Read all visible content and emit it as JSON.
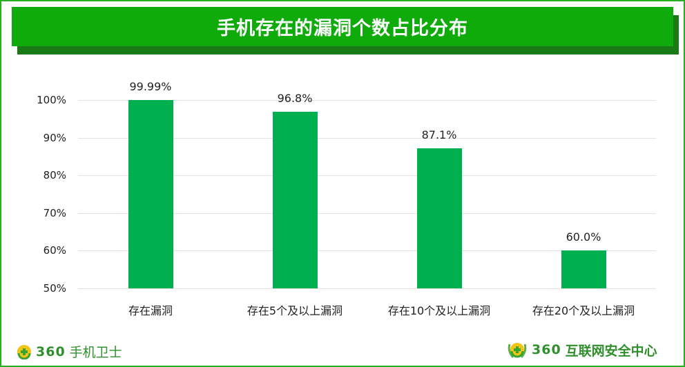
{
  "title": "手机存在的漏洞个数占比分布",
  "chart_data": {
    "type": "bar",
    "title": "手机存在的漏洞个数占比分布",
    "categories": [
      "存在漏洞",
      "存在5个及以上漏洞",
      "存在10个及以上漏洞",
      "存在20个及以上漏洞"
    ],
    "values": [
      99.99,
      96.8,
      87.1,
      60.0
    ],
    "value_labels": [
      "99.99%",
      "96.8%",
      "87.1%",
      "60.0%"
    ],
    "xlabel": "",
    "ylabel": "",
    "ylim": [
      50,
      100
    ],
    "yticks": [
      "100%",
      "90%",
      "80%",
      "70%",
      "60%",
      "50%"
    ],
    "grid": true,
    "legend": "none",
    "bar_color": "#00af50"
  },
  "footer": {
    "left_logo_number": "360",
    "left_logo_text": "手机卫士",
    "right_logo_number": "360",
    "right_logo_text": "互联网安全中心"
  },
  "colors": {
    "banner": "#0eab0b",
    "banner_shadow": "#1a7a17",
    "frame": "#22b01f",
    "bar": "#00af50",
    "logo_text": "#2f8f2c"
  }
}
